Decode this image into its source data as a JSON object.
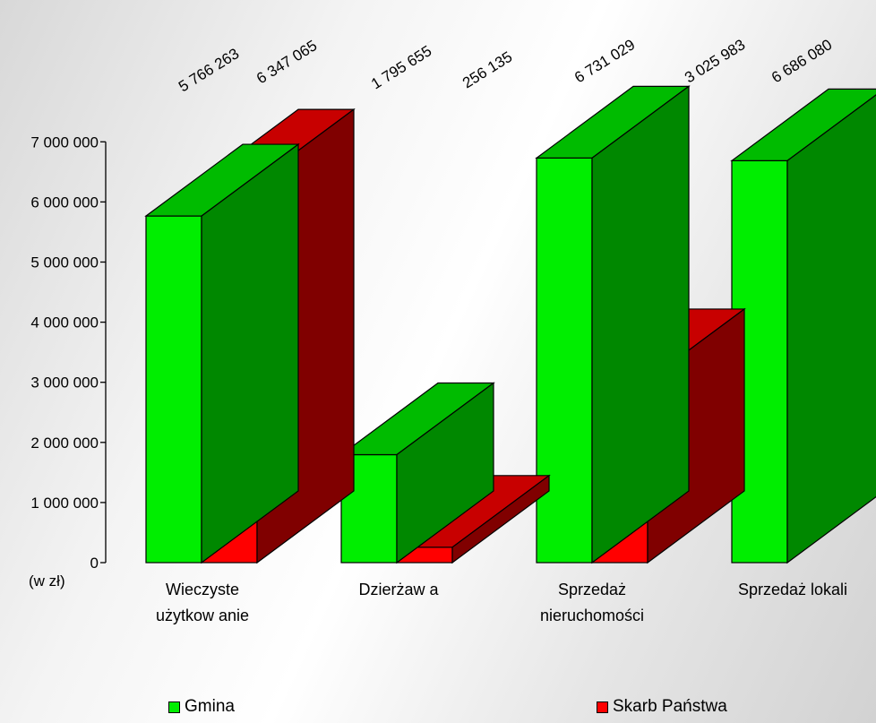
{
  "chart_data": {
    "type": "bar",
    "categories": [
      [
        "Wieczyste",
        "użytkow anie"
      ],
      [
        "Dzierżaw a"
      ],
      [
        "Sprzedaż",
        "nieruchomości"
      ],
      [
        "Sprzedaż lokali"
      ]
    ],
    "series": [
      {
        "name": "Gmina",
        "values": [
          5766263,
          1795655,
          6731029,
          6686080
        ],
        "labels": [
          "5 766 263",
          "1 795 655",
          "6 731 029",
          "6 686 080"
        ],
        "front_color": "#00ee00",
        "top_color": "#00bb00",
        "side_color": "#008800"
      },
      {
        "name": "Skarb Państwa",
        "values": [
          6347065,
          256135,
          3025983,
          null
        ],
        "labels": [
          "6 347 065",
          "256 135",
          "3 025 983",
          null
        ],
        "front_color": "#ff0000",
        "top_color": "#c80000",
        "side_color": "#800000"
      }
    ],
    "yticks": [
      {
        "value": 0,
        "label": "0"
      },
      {
        "value": 1000000,
        "label": "1 000 000"
      },
      {
        "value": 2000000,
        "label": "2 000 000"
      },
      {
        "value": 3000000,
        "label": "3 000 000"
      },
      {
        "value": 4000000,
        "label": "4 000 000"
      },
      {
        "value": 5000000,
        "label": "5 000 000"
      },
      {
        "value": 6000000,
        "label": "6 000 000"
      },
      {
        "value": 7000000,
        "label": "7 000 000"
      }
    ],
    "ylim": [
      0,
      7000000
    ],
    "unit_label": "(w  zł)",
    "legend_placement": "bottom"
  },
  "legend": {
    "gmina_label": "Gmina",
    "gmina_color": "#00ee00",
    "skarb_label": "Skarb Państwa",
    "skarb_color": "#ff0000"
  }
}
